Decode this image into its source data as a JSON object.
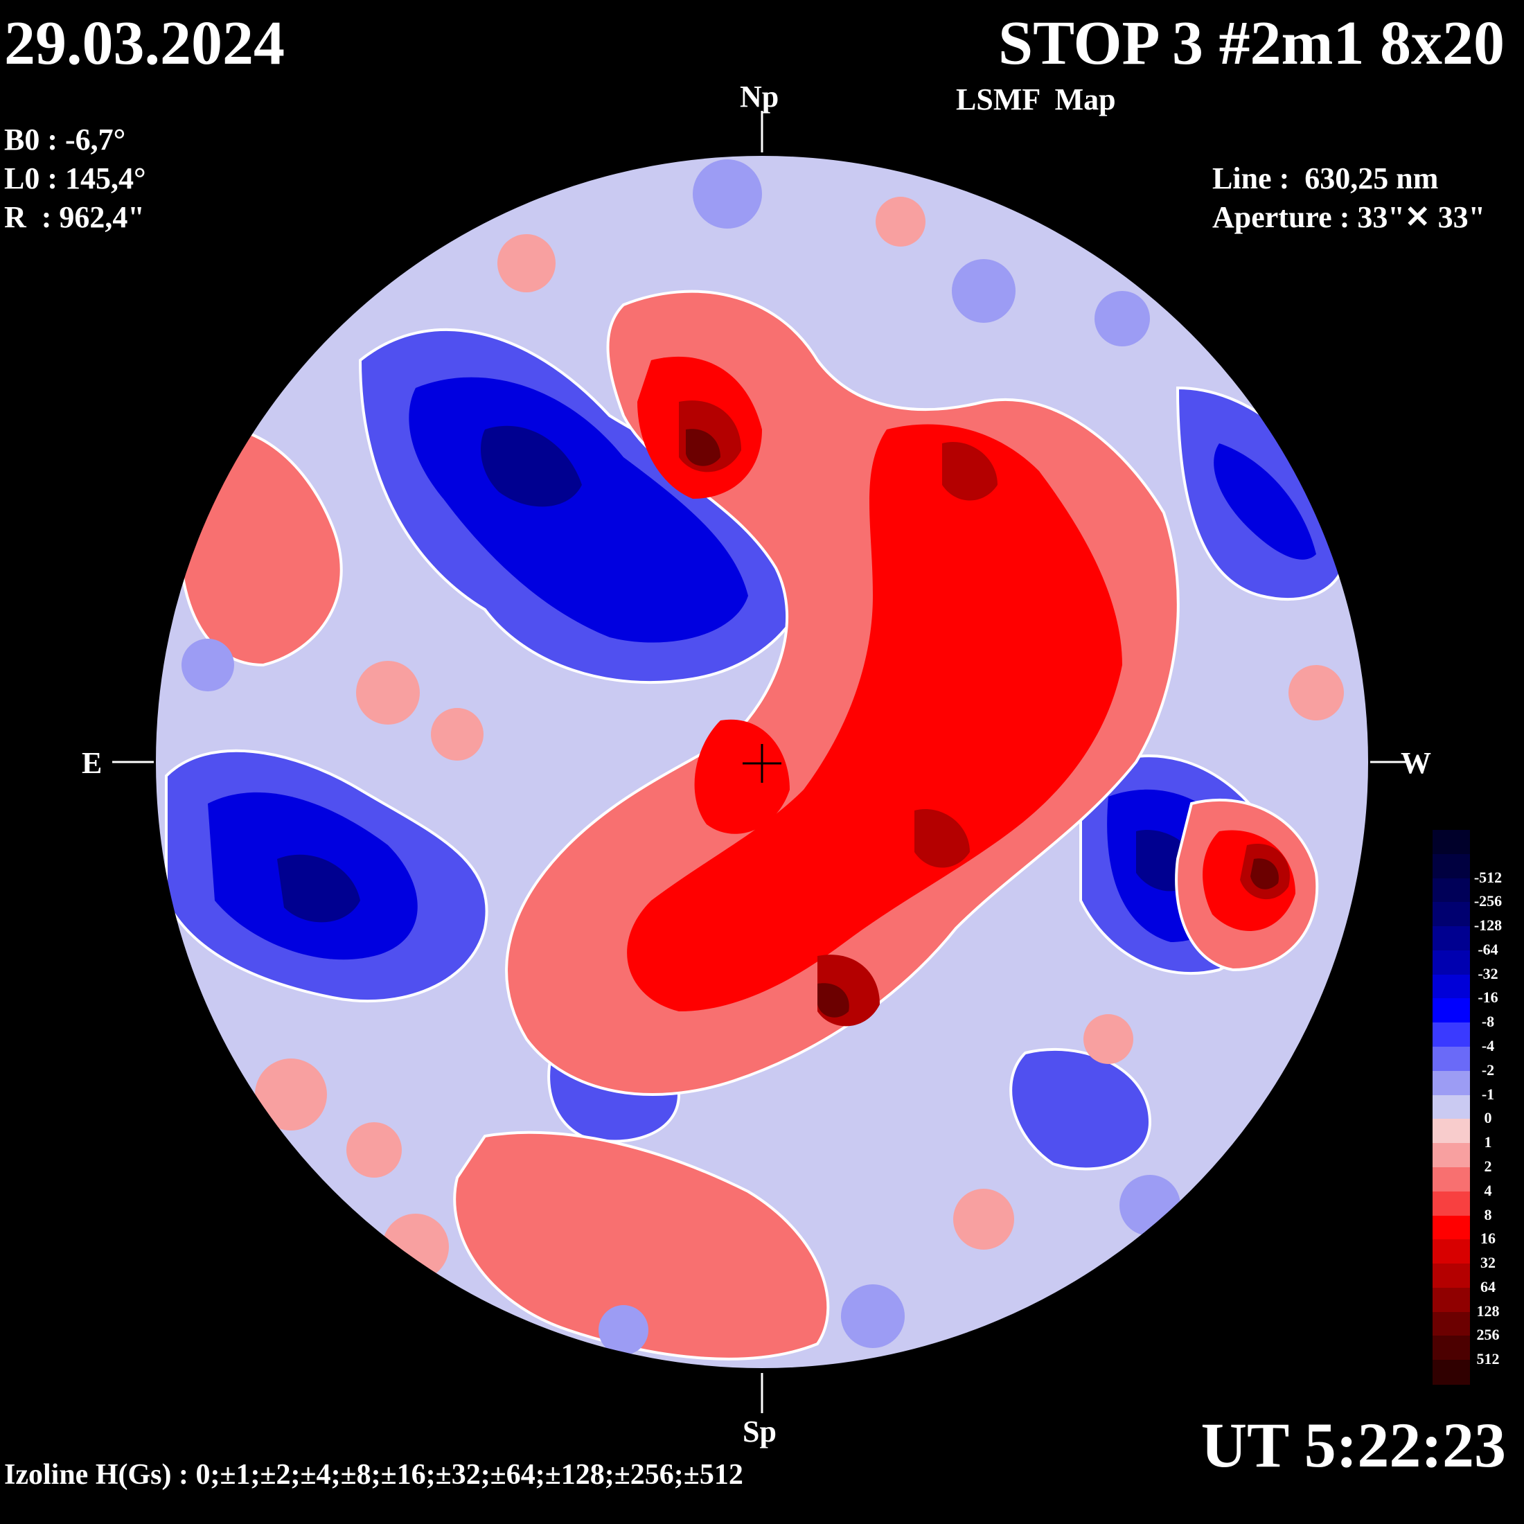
{
  "header": {
    "date": "29.03.2024",
    "title": "STOP 3 #2m1 8x20",
    "subtitle": "LSMF  Map"
  },
  "params": {
    "b0": "B0 : -6,7°",
    "l0": "L0 : 145,4°",
    "r": "R  : 962,4\"",
    "line": "Line :  630,25 nm",
    "aperture": "Aperture : 33\"✕ 33\""
  },
  "directions": {
    "north": "Np",
    "south": "Sp",
    "east": "E",
    "west": "W"
  },
  "footer": {
    "time": "UT 5:22:23",
    "izoline": "Izoline H(Gs) : 0;±1;±2;±4;±8;±16;±32;±64;±128;±256;±512"
  },
  "colorbar": {
    "levels": [
      {
        "label": "",
        "color": "#00002a"
      },
      {
        "label": "-512",
        "color": "#000040"
      },
      {
        "label": "-256",
        "color": "#000058"
      },
      {
        "label": "-128",
        "color": "#000070"
      },
      {
        "label": "-64",
        "color": "#000090"
      },
      {
        "label": "-32",
        "color": "#0000b0"
      },
      {
        "label": "-16",
        "color": "#0000d8"
      },
      {
        "label": "-8",
        "color": "#0000ff"
      },
      {
        "label": "-4",
        "color": "#3a3aff"
      },
      {
        "label": "-2",
        "color": "#6a6af8"
      },
      {
        "label": "-1",
        "color": "#9c9cf4"
      },
      {
        "label": "0",
        "color": "#cacaf2"
      },
      {
        "label": "1",
        "color": "#f8cccc"
      },
      {
        "label": "2",
        "color": "#f8a0a0"
      },
      {
        "label": "4",
        "color": "#f87070"
      },
      {
        "label": "8",
        "color": "#f84040"
      },
      {
        "label": "16",
        "color": "#ff0000"
      },
      {
        "label": "32",
        "color": "#d80000"
      },
      {
        "label": "64",
        "color": "#b40000"
      },
      {
        "label": "128",
        "color": "#900000"
      },
      {
        "label": "256",
        "color": "#6c0000"
      },
      {
        "label": "512",
        "color": "#4c0000"
      },
      {
        "label": "",
        "color": "#300000"
      }
    ]
  }
}
